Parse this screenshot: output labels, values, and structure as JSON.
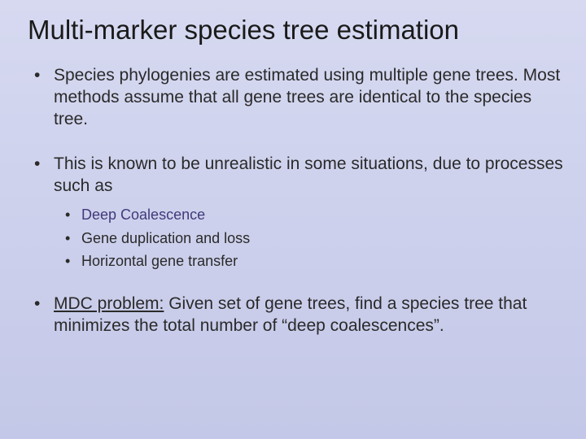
{
  "slide": {
    "background_gradient_top": "#d6d9f0",
    "background_gradient_bottom": "#c4c8e8",
    "title": "Multi-marker species tree estimation",
    "title_fontsize": 33,
    "title_color": "#1a1a1a",
    "body_fontsize": 21,
    "sub_fontsize": 18,
    "text_color": "#2a2a2a",
    "emph_color": "#403a7a",
    "bullets": [
      {
        "text": "Species phylogenies are estimated using multiple gene trees.  Most methods assume that all gene trees are identical to the species tree."
      },
      {
        "text": "This is known to be unrealistic in some situations, due to processes such as",
        "sub": [
          {
            "text": "Deep Coalescence",
            "emph": true
          },
          {
            "text": "Gene duplication and loss"
          },
          {
            "text": "Horizontal gene transfer"
          }
        ]
      },
      {
        "prefix_underlined": "MDC problem:",
        "rest": " Given set of gene trees, find a species tree that minimizes the total number of “deep coalescences”."
      }
    ]
  }
}
